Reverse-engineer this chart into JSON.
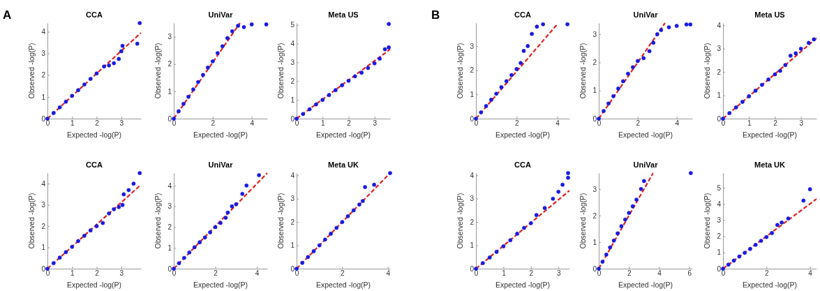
{
  "chart_data": [
    {
      "type": "scatter",
      "title": "CCA",
      "xlabel": "Expected -log(P)",
      "ylabel": "Observed -log(P)",
      "annotations": [
        "A"
      ],
      "xlim": [
        0,
        3.8
      ],
      "ylim": [
        0,
        4.4
      ],
      "xticks": [
        0,
        1,
        2,
        3
      ],
      "yticks": [
        0,
        1,
        2,
        3,
        4
      ],
      "series": [
        {
          "type": "scatter",
          "marker": "circle",
          "color": "#1a1ae0",
          "x": [
            0,
            0.25,
            0.5,
            0.75,
            1,
            1.25,
            1.5,
            1.75,
            2,
            2.3,
            2.5,
            2.7,
            2.9,
            3.0,
            3.05,
            3.65,
            3.75
          ],
          "values": [
            0,
            0.26,
            0.52,
            0.78,
            1.05,
            1.31,
            1.57,
            1.83,
            2.08,
            2.4,
            2.45,
            2.55,
            2.75,
            3.1,
            3.35,
            3.45,
            4.4
          ]
        },
        {
          "type": "line",
          "color": "#e02020",
          "line_style": "dashed",
          "x": [
            0,
            3.8
          ],
          "values": [
            0,
            3.95
          ]
        }
      ]
    },
    {
      "type": "scatter",
      "title": "UniVar",
      "xlabel": "Expected -log(P)",
      "ylabel": "Observed -log(P)",
      "xlim": [
        0,
        4.8
      ],
      "ylim": [
        0,
        3.5
      ],
      "xticks": [
        0,
        2,
        4
      ],
      "yticks": [
        0,
        1,
        2,
        3
      ],
      "series": [
        {
          "type": "scatter",
          "marker": "circle",
          "color": "#1a1ae0",
          "x": [
            0,
            0.25,
            0.5,
            0.75,
            1,
            1.25,
            1.5,
            1.75,
            2,
            2.25,
            2.5,
            2.75,
            3.0,
            3.3,
            3.6,
            4.0,
            4.75
          ],
          "values": [
            0,
            0.27,
            0.54,
            0.8,
            1.07,
            1.34,
            1.6,
            1.87,
            2.1,
            2.4,
            2.65,
            2.95,
            3.2,
            3.4,
            3.35,
            3.45,
            3.45
          ]
        },
        {
          "type": "line",
          "color": "#e02020",
          "line_style": "dashed",
          "x": [
            0,
            3.4
          ],
          "values": [
            0,
            3.5
          ]
        }
      ]
    },
    {
      "type": "scatter",
      "title": "Meta US",
      "xlabel": "Expected -log(P)",
      "ylabel": "Observed -log(P)",
      "xlim": [
        0,
        3.6
      ],
      "ylim": [
        0,
        5.1
      ],
      "xticks": [
        0,
        1,
        2,
        3
      ],
      "yticks": [
        0,
        1,
        2,
        3,
        4,
        5
      ],
      "series": [
        {
          "type": "scatter",
          "marker": "circle",
          "color": "#1a1ae0",
          "x": [
            0,
            0.25,
            0.5,
            0.75,
            1,
            1.25,
            1.5,
            1.75,
            2,
            2.25,
            2.5,
            2.75,
            3.0,
            3.2,
            3.4,
            3.55,
            3.55
          ],
          "values": [
            0,
            0.25,
            0.5,
            0.76,
            1.0,
            1.26,
            1.52,
            1.78,
            2.02,
            2.26,
            2.45,
            2.7,
            2.95,
            3.2,
            3.7,
            3.8,
            5.05
          ]
        },
        {
          "type": "line",
          "color": "#e02020",
          "line_style": "dashed",
          "x": [
            0,
            3.6
          ],
          "values": [
            0,
            3.7
          ]
        }
      ]
    },
    {
      "type": "scatter",
      "title": "CCA",
      "xlabel": "Expected -log(P)",
      "ylabel": "Observed -log(P)",
      "xlim": [
        0,
        3.8
      ],
      "ylim": [
        0,
        4.5
      ],
      "xticks": [
        0,
        1,
        2,
        3
      ],
      "yticks": [
        0,
        1,
        2,
        3,
        4
      ],
      "series": [
        {
          "type": "scatter",
          "marker": "circle",
          "color": "#1a1ae0",
          "x": [
            0,
            0.25,
            0.5,
            0.75,
            1,
            1.25,
            1.5,
            1.75,
            2,
            2.25,
            2.5,
            2.7,
            2.9,
            3.05,
            3.1,
            3.3,
            3.5,
            3.75
          ],
          "values": [
            0,
            0.26,
            0.52,
            0.78,
            1.03,
            1.3,
            1.55,
            1.8,
            2.0,
            2.15,
            2.6,
            2.8,
            2.9,
            3.0,
            3.5,
            3.7,
            4.0,
            4.5
          ]
        },
        {
          "type": "line",
          "color": "#e02020",
          "line_style": "dashed",
          "x": [
            0,
            3.8
          ],
          "values": [
            0,
            3.95
          ]
        }
      ]
    },
    {
      "type": "scatter",
      "title": "UniVar",
      "xlabel": "Expected -log(P)",
      "ylabel": "Observed -log(P)",
      "xlim": [
        0,
        4.5
      ],
      "ylim": [
        0,
        4.6
      ],
      "xticks": [
        0,
        2,
        4
      ],
      "yticks": [
        0,
        1,
        2,
        3,
        4
      ],
      "series": [
        {
          "type": "scatter",
          "marker": "circle",
          "color": "#1a1ae0",
          "x": [
            0,
            0.25,
            0.5,
            0.75,
            1,
            1.25,
            1.5,
            1.75,
            2,
            2.25,
            2.5,
            2.6,
            2.8,
            3.0,
            3.3,
            3.5,
            4.1
          ],
          "values": [
            0,
            0.26,
            0.52,
            0.78,
            1.03,
            1.27,
            1.5,
            1.75,
            2.0,
            2.2,
            2.45,
            2.7,
            3.0,
            3.1,
            3.6,
            4.0,
            4.5
          ]
        },
        {
          "type": "line",
          "color": "#e02020",
          "line_style": "dashed",
          "x": [
            0,
            4.5
          ],
          "values": [
            0,
            4.6
          ]
        }
      ]
    },
    {
      "type": "scatter",
      "title": "Meta UK",
      "xlabel": "Expected -log(P)",
      "ylabel": "Observed -log(P)",
      "xlim": [
        0,
        4.1
      ],
      "ylim": [
        0,
        4.1
      ],
      "xticks": [
        0,
        2,
        4
      ],
      "yticks": [
        0,
        1,
        2,
        3,
        4
      ],
      "series": [
        {
          "type": "scatter",
          "marker": "circle",
          "color": "#1a1ae0",
          "x": [
            0,
            0.25,
            0.5,
            0.75,
            1,
            1.25,
            1.5,
            1.75,
            2,
            2.25,
            2.5,
            2.75,
            2.9,
            3.0,
            3.4,
            4.1
          ],
          "values": [
            0,
            0.25,
            0.5,
            0.75,
            1.0,
            1.25,
            1.5,
            1.75,
            2.0,
            2.25,
            2.5,
            2.75,
            2.9,
            3.5,
            3.6,
            4.1
          ]
        },
        {
          "type": "line",
          "color": "#e02020",
          "line_style": "dashed",
          "x": [
            0,
            4.1
          ],
          "values": [
            0,
            4.1
          ]
        }
      ]
    },
    {
      "type": "scatter",
      "title": "CCA",
      "xlabel": "Expected -log(P)",
      "ylabel": "Observed -log(P)",
      "annotations": [
        "B"
      ],
      "xlim": [
        0,
        4.6
      ],
      "ylim": [
        0,
        3.95
      ],
      "xticks": [
        0,
        2,
        4
      ],
      "yticks": [
        0,
        1,
        2,
        3
      ],
      "series": [
        {
          "type": "scatter",
          "marker": "circle",
          "color": "#1a1ae0",
          "x": [
            0,
            0.25,
            0.5,
            0.75,
            1,
            1.25,
            1.5,
            1.75,
            2,
            2.2,
            2.35,
            2.55,
            2.75,
            3.0,
            3.3,
            4.5
          ],
          "values": [
            0,
            0.26,
            0.52,
            0.78,
            1.03,
            1.3,
            1.55,
            1.8,
            2.05,
            2.3,
            2.8,
            3.0,
            3.5,
            3.8,
            3.9,
            3.9
          ]
        },
        {
          "type": "line",
          "color": "#e02020",
          "line_style": "dashed",
          "x": [
            0,
            4.0
          ],
          "values": [
            0,
            3.9
          ]
        }
      ]
    },
    {
      "type": "scatter",
      "title": "UniVar",
      "xlabel": "Expected -log(P)",
      "ylabel": "Observed -log(P)",
      "xlim": [
        0,
        4.8
      ],
      "ylim": [
        0,
        3.4
      ],
      "xticks": [
        0,
        2,
        4
      ],
      "yticks": [
        0,
        1,
        2,
        3
      ],
      "series": [
        {
          "type": "scatter",
          "marker": "circle",
          "color": "#1a1ae0",
          "x": [
            0,
            0.25,
            0.5,
            0.75,
            1,
            1.25,
            1.5,
            1.75,
            2,
            2.3,
            2.6,
            2.8,
            3.0,
            3.2,
            3.6,
            4.0,
            4.5,
            4.7
          ],
          "values": [
            0,
            0.27,
            0.54,
            0.8,
            1.07,
            1.33,
            1.6,
            1.83,
            2.05,
            2.15,
            2.4,
            2.7,
            3.0,
            3.15,
            3.25,
            3.3,
            3.35,
            3.35
          ]
        },
        {
          "type": "line",
          "color": "#e02020",
          "line_style": "dashed",
          "x": [
            0,
            3.4
          ],
          "values": [
            0,
            3.4
          ]
        }
      ]
    },
    {
      "type": "scatter",
      "title": "Meta US",
      "xlabel": "Expected -log(P)",
      "ylabel": "Observed -log(P)",
      "xlim": [
        0,
        3.6
      ],
      "ylim": [
        0,
        4.1
      ],
      "xticks": [
        0,
        1,
        2,
        3
      ],
      "yticks": [
        0,
        1,
        2,
        3,
        4
      ],
      "series": [
        {
          "type": "scatter",
          "marker": "circle",
          "color": "#1a1ae0",
          "x": [
            0,
            0.25,
            0.5,
            0.75,
            1,
            1.25,
            1.5,
            1.75,
            2,
            2.2,
            2.4,
            2.6,
            2.8,
            3.0,
            3.3,
            3.5
          ],
          "values": [
            0,
            0.24,
            0.48,
            0.72,
            0.96,
            1.2,
            1.45,
            1.68,
            1.9,
            2.05,
            2.3,
            2.7,
            2.8,
            3.0,
            3.25,
            3.4
          ]
        },
        {
          "type": "line",
          "color": "#e02020",
          "line_style": "dashed",
          "x": [
            0,
            3.6
          ],
          "values": [
            0,
            3.45
          ]
        }
      ]
    },
    {
      "type": "scatter",
      "title": "CCA",
      "xlabel": "Expected -log(P)",
      "ylabel": "Observed -log(P)",
      "xlim": [
        0,
        3.4
      ],
      "ylim": [
        0,
        4.1
      ],
      "xticks": [
        0,
        1,
        2,
        3
      ],
      "yticks": [
        0,
        1,
        2,
        3,
        4
      ],
      "series": [
        {
          "type": "scatter",
          "marker": "circle",
          "color": "#1a1ae0",
          "x": [
            0,
            0.25,
            0.5,
            0.75,
            1,
            1.25,
            1.5,
            1.75,
            2,
            2.2,
            2.5,
            2.8,
            3.0,
            3.15,
            3.35,
            3.35
          ],
          "values": [
            0,
            0.24,
            0.48,
            0.72,
            0.96,
            1.22,
            1.5,
            1.75,
            1.95,
            2.3,
            2.6,
            3.0,
            3.3,
            3.6,
            3.9,
            4.1
          ]
        },
        {
          "type": "line",
          "color": "#e02020",
          "line_style": "dashed",
          "x": [
            0,
            3.4
          ],
          "values": [
            0,
            3.35
          ]
        }
      ]
    },
    {
      "type": "scatter",
      "title": "UniVar",
      "xlabel": "Expected -log(P)",
      "ylabel": "Observed -log(P)",
      "xlim": [
        0,
        6.2
      ],
      "ylim": [
        0,
        3.6
      ],
      "xticks": [
        0,
        2,
        4,
        6
      ],
      "yticks": [
        0,
        1,
        2,
        3
      ],
      "series": [
        {
          "type": "scatter",
          "marker": "circle",
          "color": "#1a1ae0",
          "x": [
            0,
            0.25,
            0.5,
            0.75,
            1,
            1.25,
            1.5,
            1.75,
            2,
            2.25,
            2.5,
            2.8,
            3.0,
            6.1
          ],
          "values": [
            0,
            0.26,
            0.53,
            0.8,
            1.06,
            1.33,
            1.6,
            1.85,
            2.1,
            2.35,
            2.6,
            3.0,
            3.3,
            3.6
          ]
        },
        {
          "type": "line",
          "color": "#e02020",
          "line_style": "dashed",
          "x": [
            0,
            3.6
          ],
          "values": [
            0,
            3.6
          ]
        }
      ]
    },
    {
      "type": "scatter",
      "title": "Meta UK",
      "xlabel": "Expected -log(P)",
      "ylabel": "Observed -log(P)",
      "xlim": [
        0,
        4.3
      ],
      "ylim": [
        0,
        5.9
      ],
      "xticks": [
        0,
        2,
        4
      ],
      "yticks": [
        0,
        1,
        2,
        3,
        4,
        5
      ],
      "series": [
        {
          "type": "scatter",
          "marker": "circle",
          "color": "#1a1ae0",
          "x": [
            0,
            0.25,
            0.5,
            0.75,
            1,
            1.25,
            1.5,
            1.75,
            2,
            2.25,
            2.5,
            2.7,
            3.0,
            3.7,
            4.0
          ],
          "values": [
            0,
            0.25,
            0.5,
            0.75,
            0.98,
            1.22,
            1.47,
            1.72,
            1.95,
            2.2,
            2.7,
            2.85,
            3.1,
            4.2,
            4.9
          ]
        },
        {
          "type": "line",
          "color": "#e02020",
          "line_style": "dashed",
          "x": [
            0,
            4.3
          ],
          "values": [
            0,
            4.3
          ]
        }
      ]
    }
  ]
}
